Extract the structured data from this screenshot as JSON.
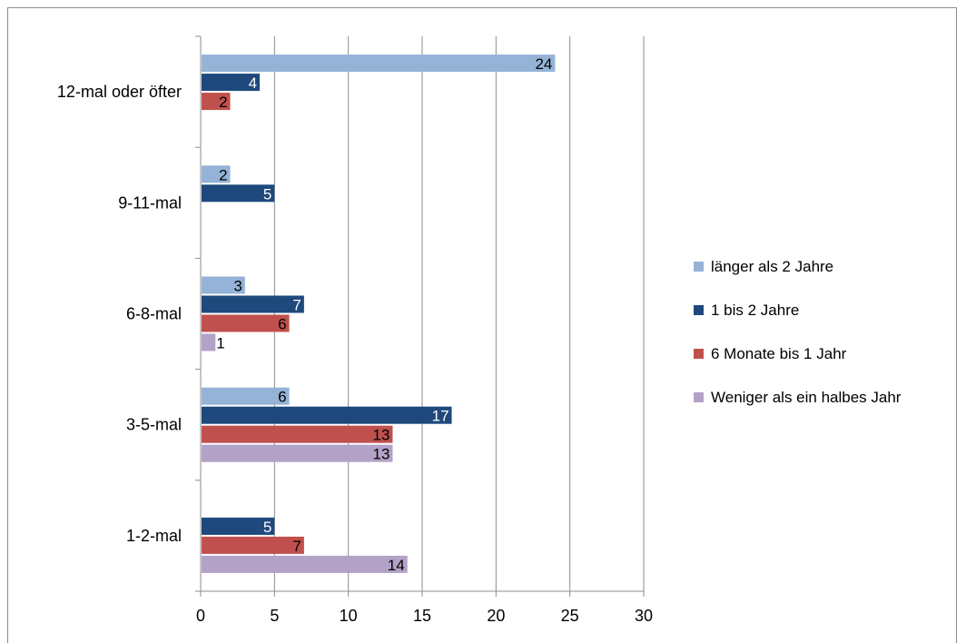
{
  "chart_data": {
    "type": "bar",
    "orientation": "horizontal",
    "title": "",
    "xlabel": "",
    "ylabel": "",
    "xlim": [
      0,
      30
    ],
    "xticks": [
      0,
      5,
      10,
      15,
      20,
      25,
      30
    ],
    "grid": "vertical",
    "legend_position": "right",
    "categories": [
      "12-mal oder öfter",
      "9-11-mal",
      "6-8-mal",
      "3-5-mal",
      "1-2-mal"
    ],
    "series": [
      {
        "name": "länger als 2 Jahre",
        "color": "#95b3d7",
        "label_color": "#000000",
        "values": [
          24,
          2,
          3,
          6,
          null
        ]
      },
      {
        "name": "1 bis 2 Jahre",
        "color": "#1f497d",
        "label_color": "#ffffff",
        "values": [
          4,
          5,
          7,
          17,
          5
        ]
      },
      {
        "name": "6 Monate bis 1 Jahr",
        "color": "#c0504d",
        "label_color": "#000000",
        "values": [
          2,
          null,
          6,
          13,
          7
        ]
      },
      {
        "name": "Weniger als ein halbes Jahr",
        "color": "#b3a2c7",
        "label_color": "#000000",
        "values": [
          null,
          null,
          1,
          13,
          14
        ]
      }
    ]
  }
}
